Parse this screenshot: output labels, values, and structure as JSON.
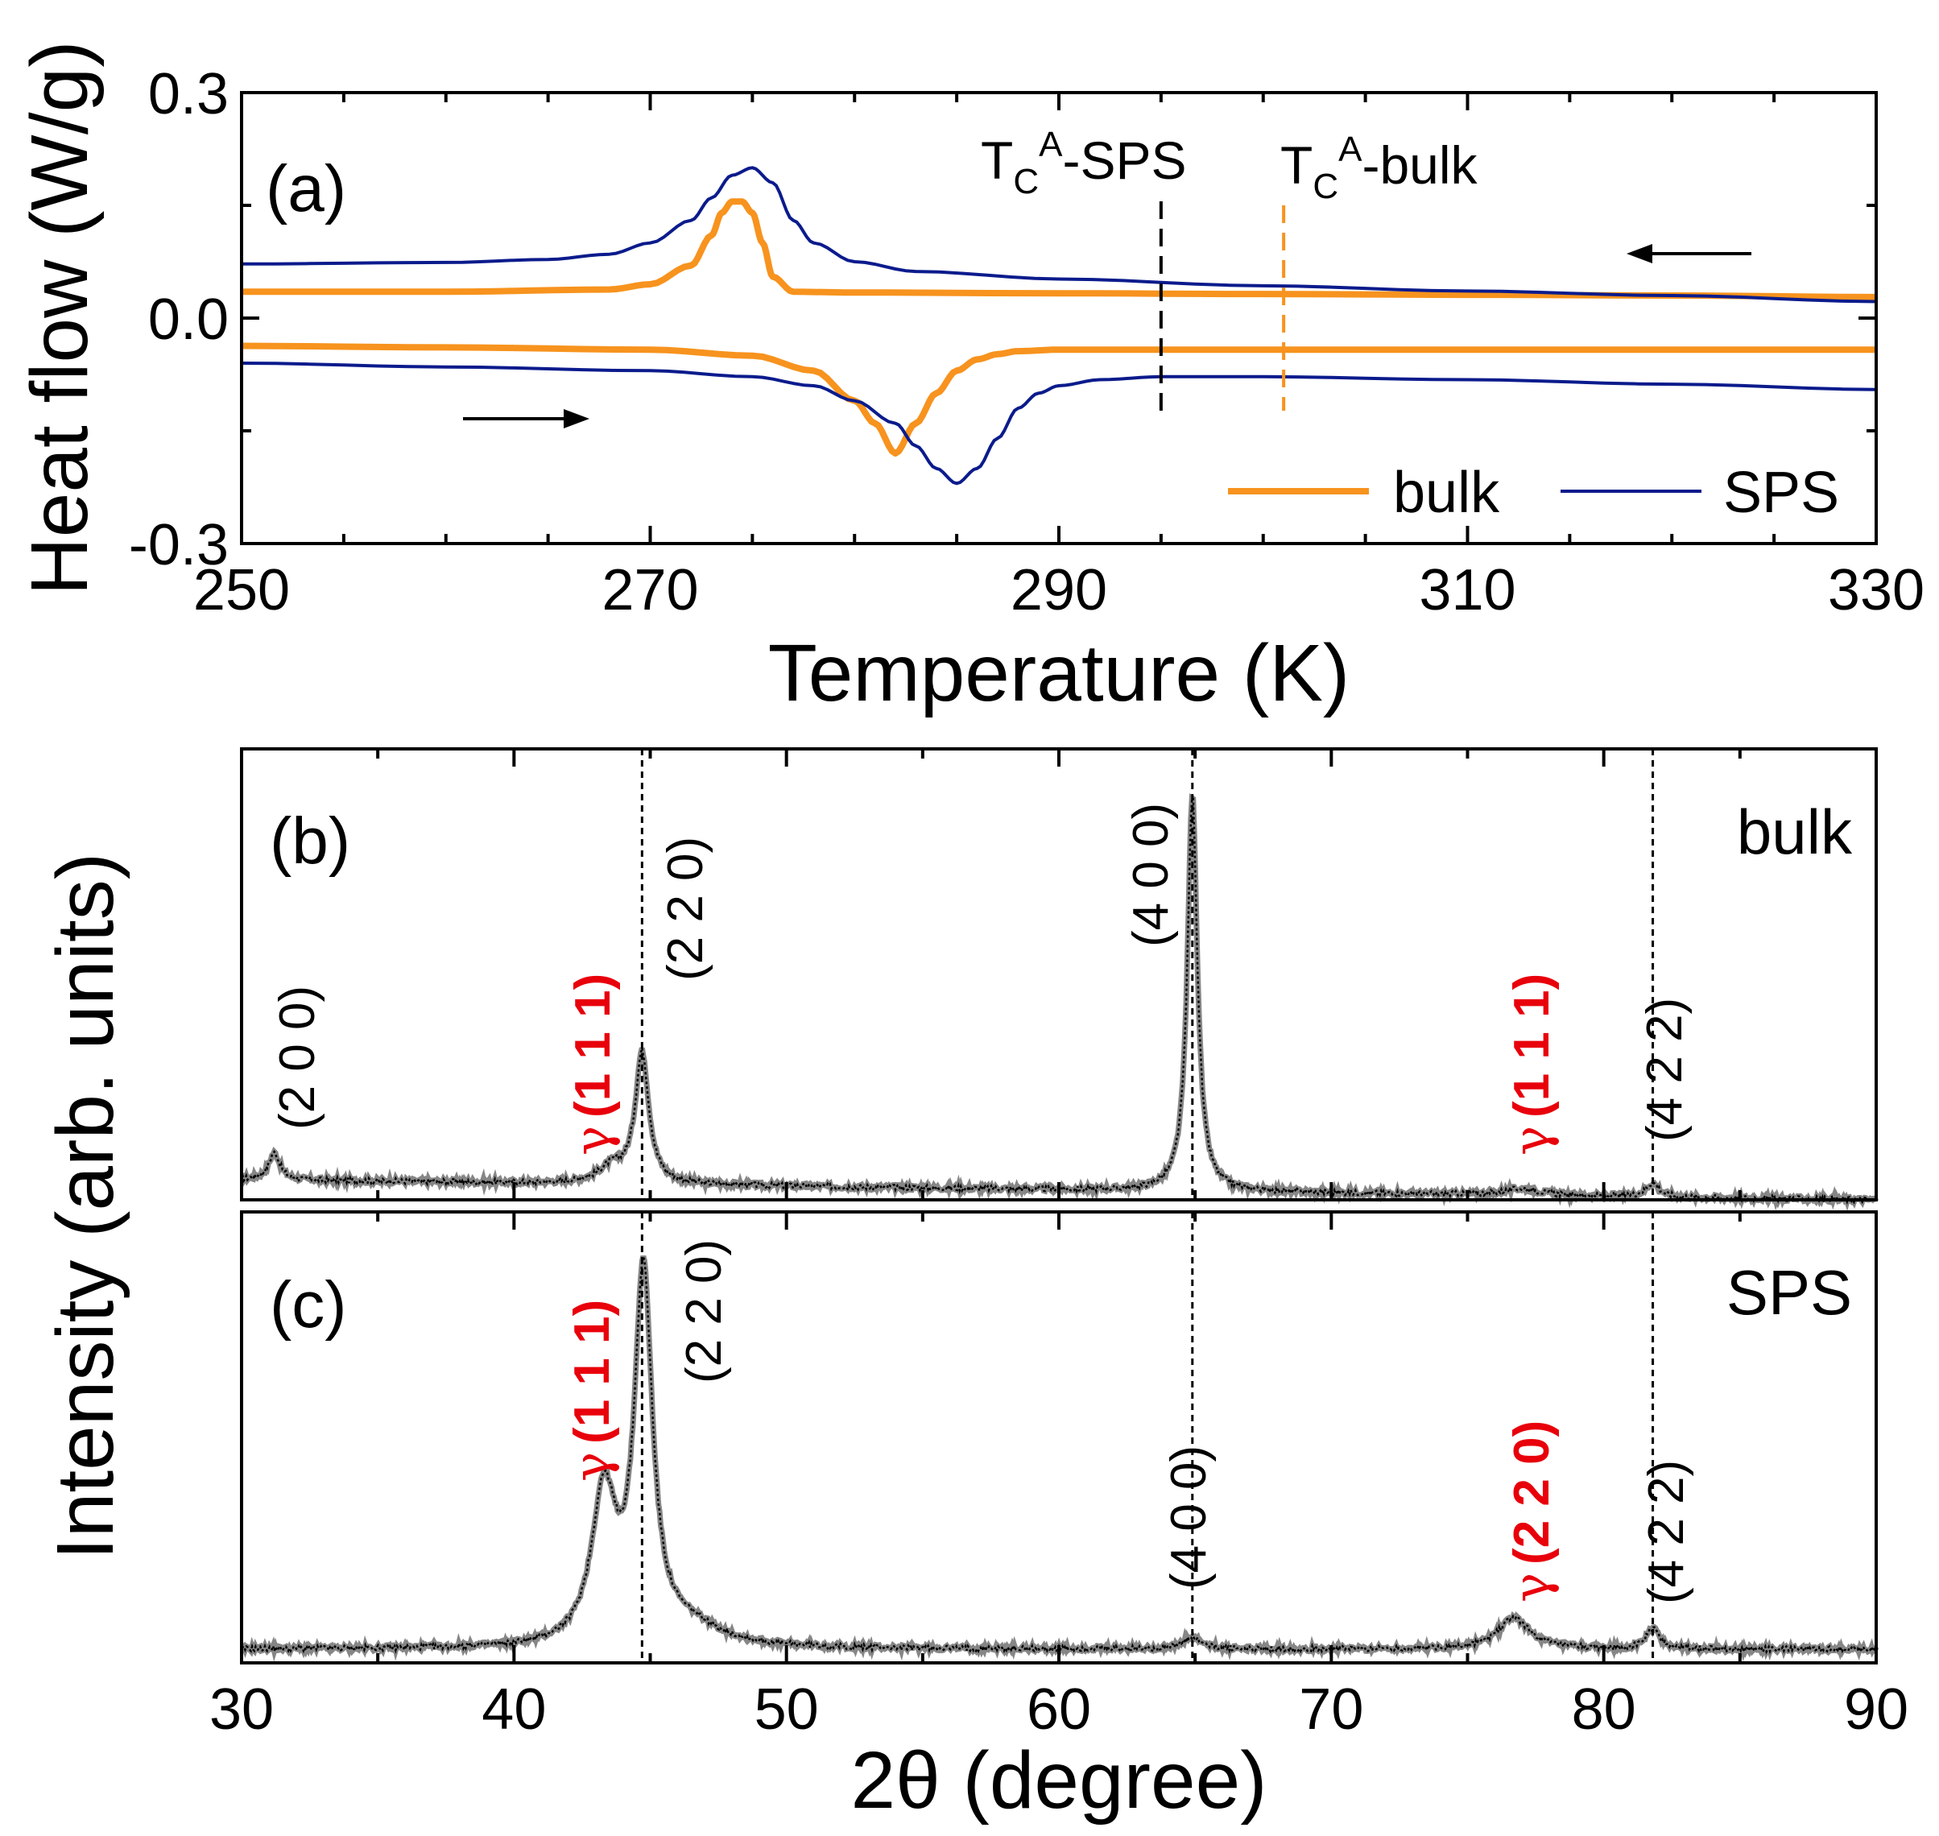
{
  "colors": {
    "bulk": "#F7931E",
    "sps": "#0B1B8C",
    "gamma": "#E8000B",
    "black": "#000000"
  },
  "panel_a": {
    "label": "(a)",
    "ylabel": "Heat flow (W/g)",
    "xlabel": "Temperature (K)",
    "yticks": [
      "0.3",
      "0.0",
      "-0.3"
    ],
    "xticks": [
      "250",
      "270",
      "290",
      "310",
      "330"
    ],
    "tc_sps": {
      "T": "T",
      "C": "C",
      "A": "A",
      "suffix": "-SPS",
      "temperature": 295
    },
    "tc_bulk": {
      "T": "T",
      "C": "C",
      "A": "A",
      "suffix": "-bulk",
      "temperature": 301
    },
    "legend": {
      "bulk": "bulk",
      "sps": "SPS",
      "placement": "bottom-right"
    }
  },
  "panel_b": {
    "label": "(b)",
    "sample": "bulk",
    "peaks": [
      {
        "hkl": "(2 0 0)",
        "two_theta": 31.2
      },
      {
        "hkl": "(2 2 0)",
        "two_theta": 44.7
      },
      {
        "hkl": "(4 0 0)",
        "two_theta": 64.9
      },
      {
        "hkl": "(4 2 2)",
        "two_theta": 81.8
      }
    ],
    "gamma_peaks": [
      {
        "gamma": "γ",
        "hkl": "(1 1 1)",
        "two_theta": 43.5
      },
      {
        "gamma": "γ",
        "hkl": "(1 1 1)",
        "two_theta": 77.0
      }
    ]
  },
  "panel_c": {
    "label": "(c)",
    "sample": "SPS",
    "peaks": [
      {
        "hkl": "(2 2 0)",
        "two_theta": 44.7
      },
      {
        "hkl": "(4 0 0)",
        "two_theta": 64.9
      },
      {
        "hkl": "(4 2 2)",
        "two_theta": 81.8
      }
    ],
    "gamma_peaks": [
      {
        "gamma": "γ",
        "hkl": "(1 1 1)",
        "two_theta": 43.3
      },
      {
        "gamma": "γ",
        "hkl": "(2 2 0)",
        "two_theta": 76.7
      }
    ]
  },
  "xrd_axis": {
    "ylabel": "Intensity (arb. units)",
    "xlabel": "2θ (degree)",
    "xticks": [
      "30",
      "40",
      "50",
      "60",
      "70",
      "80",
      "90"
    ]
  },
  "chart_data": [
    {
      "type": "line",
      "title": "(a)",
      "xlabel": "Temperature (K)",
      "ylabel": "Heat flow (W/g)",
      "xlim": [
        250,
        330
      ],
      "ylim": [
        -0.3,
        0.3
      ],
      "grid": false,
      "legend": "bottom-right",
      "series": [
        {
          "name": "bulk",
          "branch": "cooling",
          "x": [
            250,
            260,
            268,
            270,
            272,
            273,
            273.5,
            274,
            274.5,
            275,
            275.5,
            276,
            277,
            280,
            290,
            300,
            310,
            320,
            330
          ],
          "values": [
            0.035,
            0.035,
            0.038,
            0.045,
            0.07,
            0.11,
            0.14,
            0.155,
            0.155,
            0.14,
            0.1,
            0.055,
            0.035,
            0.034,
            0.033,
            0.032,
            0.031,
            0.03,
            0.028
          ]
        },
        {
          "name": "SPS",
          "branch": "cooling",
          "x": [
            250,
            260,
            265,
            268,
            270,
            272,
            273,
            274,
            275,
            276,
            277,
            278,
            280,
            283,
            290,
            300,
            310,
            320,
            330
          ],
          "values": [
            0.072,
            0.074,
            0.078,
            0.085,
            0.1,
            0.13,
            0.16,
            0.19,
            0.2,
            0.18,
            0.13,
            0.1,
            0.075,
            0.062,
            0.052,
            0.043,
            0.036,
            0.03,
            0.022
          ]
        },
        {
          "name": "bulk",
          "branch": "heating",
          "x": [
            250,
            260,
            270,
            275,
            278,
            280,
            281,
            282,
            283,
            284,
            285,
            286,
            287,
            288,
            290,
            300,
            310,
            320,
            330
          ],
          "values": [
            -0.037,
            -0.039,
            -0.042,
            -0.05,
            -0.07,
            -0.11,
            -0.14,
            -0.18,
            -0.14,
            -0.1,
            -0.07,
            -0.055,
            -0.048,
            -0.044,
            -0.042,
            -0.042,
            -0.042,
            -0.042,
            -0.042
          ]
        },
        {
          "name": "SPS",
          "branch": "heating",
          "x": [
            250,
            260,
            270,
            275,
            278,
            280,
            282,
            283,
            284,
            285,
            286,
            287,
            288,
            289,
            290,
            292,
            295,
            300,
            310,
            320,
            330
          ],
          "values": [
            -0.06,
            -0.065,
            -0.07,
            -0.078,
            -0.09,
            -0.11,
            -0.14,
            -0.17,
            -0.2,
            -0.22,
            -0.2,
            -0.16,
            -0.12,
            -0.1,
            -0.09,
            -0.082,
            -0.078,
            -0.078,
            -0.082,
            -0.088,
            -0.095
          ]
        }
      ],
      "annotations": [
        "TC^A-SPS at 295 K",
        "TC^A-bulk at 301 K"
      ]
    },
    {
      "type": "scatter",
      "title": "(b)",
      "sample": "bulk",
      "xlabel": "2θ (degree)",
      "ylabel": "Intensity (arb. units)",
      "xlim": [
        30,
        90
      ],
      "ylim": [
        0,
        1
      ],
      "peaks": [
        {
          "two_theta": 31.2,
          "height": 0.06,
          "width": 0.25
        },
        {
          "two_theta": 43.6,
          "height": 0.035,
          "width": 0.6
        },
        {
          "two_theta": 44.7,
          "height": 0.29,
          "width": 0.3
        },
        {
          "two_theta": 64.9,
          "height": 0.88,
          "width": 0.22
        },
        {
          "two_theta": 77.0,
          "height": 0.015,
          "width": 0.8
        },
        {
          "two_theta": 81.8,
          "height": 0.03,
          "width": 0.3
        }
      ],
      "baseline": [
        0.045,
        0.0
      ]
    },
    {
      "type": "scatter",
      "title": "(c)",
      "sample": "SPS",
      "xlabel": "2θ (degree)",
      "ylabel": "Intensity (arb. units)",
      "xlim": [
        30,
        90
      ],
      "ylim": [
        0,
        1
      ],
      "peaks": [
        {
          "two_theta": 43.3,
          "height": 0.33,
          "width": 0.55
        },
        {
          "two_theta": 44.75,
          "height": 0.81,
          "width": 0.4
        },
        {
          "two_theta": 46.5,
          "height": 0.04,
          "width": 1.5
        },
        {
          "two_theta": 64.9,
          "height": 0.025,
          "width": 0.4
        },
        {
          "two_theta": 76.7,
          "height": 0.07,
          "width": 0.7
        },
        {
          "two_theta": 81.8,
          "height": 0.045,
          "width": 0.3
        }
      ],
      "baseline": [
        0.03,
        0.03
      ]
    }
  ]
}
